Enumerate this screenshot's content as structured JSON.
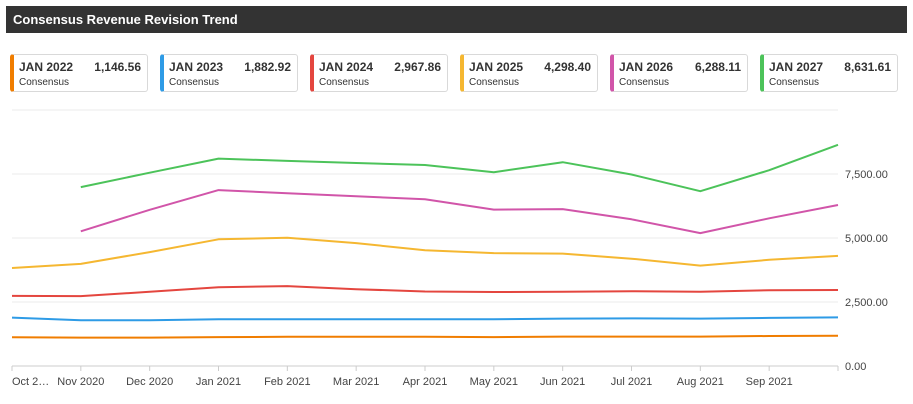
{
  "header": {
    "title": "Consensus Revenue Revision Trend"
  },
  "legend": [
    {
      "period": "JAN 2022",
      "value": "1,146.56",
      "sub": "Consensus",
      "color": "#f07d00"
    },
    {
      "period": "JAN 2023",
      "value": "1,882.92",
      "sub": "Consensus",
      "color": "#2e9be6"
    },
    {
      "period": "JAN 2024",
      "value": "2,967.86",
      "sub": "Consensus",
      "color": "#e4463f"
    },
    {
      "period": "JAN 2025",
      "value": "4,298.40",
      "sub": "Consensus",
      "color": "#f5b731"
    },
    {
      "period": "JAN 2026",
      "value": "6,288.11",
      "sub": "Consensus",
      "color": "#d155a9"
    },
    {
      "period": "JAN 2027",
      "value": "8,631.61",
      "sub": "Consensus",
      "color": "#4cc35a"
    }
  ],
  "chart_data": {
    "type": "line",
    "title": "Consensus Revenue Revision Trend",
    "categories": [
      "Oct 2…",
      "Nov 2020",
      "Dec 2020",
      "Jan 2021",
      "Feb 2021",
      "Mar 2021",
      "Apr 2021",
      "May 2021",
      "Jun 2021",
      "Jul 2021",
      "Aug 2021",
      "Sep 2021",
      ""
    ],
    "ylim": [
      0,
      10000
    ],
    "yticks": [
      0,
      2500,
      5000,
      7500
    ],
    "ytick_labels": [
      "0.00",
      "2,500.00",
      "5,000.00",
      "7,500.00"
    ],
    "y_axis_position": "right",
    "grid": true,
    "series": [
      {
        "name": "JAN 2022",
        "color": "#f07d00",
        "values": [
          1120,
          1110,
          1110,
          1130,
          1140,
          1140,
          1140,
          1130,
          1150,
          1150,
          1150,
          1170,
          1180
        ]
      },
      {
        "name": "JAN 2023",
        "color": "#2e9be6",
        "values": [
          1890,
          1790,
          1790,
          1830,
          1830,
          1830,
          1830,
          1830,
          1850,
          1860,
          1850,
          1880,
          1900
        ]
      },
      {
        "name": "JAN 2024",
        "color": "#e4463f",
        "values": [
          2740,
          2730,
          2900,
          3080,
          3120,
          3000,
          2910,
          2890,
          2900,
          2920,
          2900,
          2960,
          2970
        ]
      },
      {
        "name": "JAN 2025",
        "color": "#f5b731",
        "values": [
          3830,
          3990,
          4450,
          4950,
          5010,
          4800,
          4520,
          4410,
          4390,
          4190,
          3920,
          4150,
          4300
        ]
      },
      {
        "name": "JAN 2026",
        "color": "#d155a9",
        "values": [
          null,
          5260,
          6100,
          6870,
          6750,
          6630,
          6510,
          6110,
          6130,
          5730,
          5190,
          5770,
          6290
        ]
      },
      {
        "name": "JAN 2027",
        "color": "#4cc35a",
        "values": [
          null,
          6990,
          7550,
          8100,
          8010,
          7930,
          7850,
          7570,
          7960,
          7480,
          6830,
          7650,
          8640
        ]
      }
    ]
  }
}
